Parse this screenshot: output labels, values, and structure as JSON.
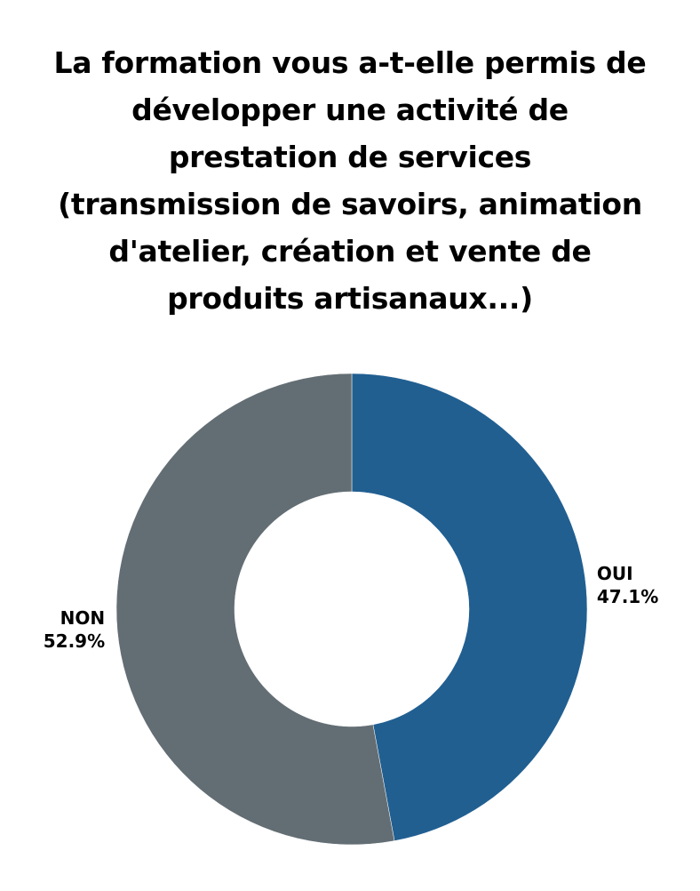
{
  "chart_data": {
    "type": "pie",
    "title": "La formation vous a-t-elle permis de développer une activité de prestation de services (transmission de savoirs, animation d'atelier, création et vente de produits artisanaux...)",
    "categories": [
      "OUI",
      "NON"
    ],
    "values": [
      47.1,
      52.9
    ],
    "value_labels": [
      "47.1%",
      "52.9%"
    ],
    "colors": [
      "#215f91",
      "#636e74"
    ],
    "donut": true,
    "legend": "none"
  }
}
